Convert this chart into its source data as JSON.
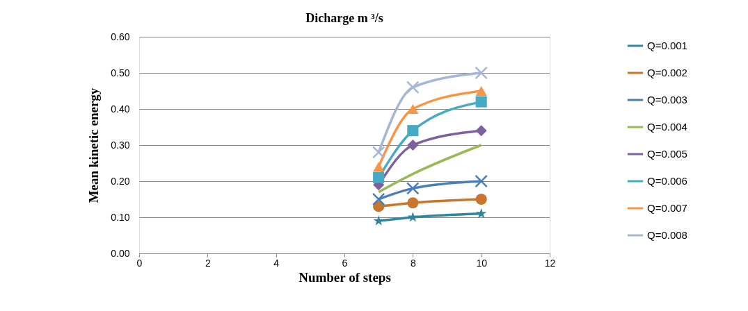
{
  "chart_data": {
    "type": "line",
    "title": "Dicharge m ³/s",
    "xlabel": "Number of steps",
    "ylabel": "Mean kinetic energy",
    "x": [
      7,
      8,
      10
    ],
    "series": [
      {
        "name": "Q=0.001",
        "color": "#31859c",
        "marker": "star",
        "values": [
          0.09,
          0.1,
          0.11
        ]
      },
      {
        "name": "Q=0.002",
        "color": "#c8752e",
        "marker": "circle",
        "values": [
          0.13,
          0.14,
          0.15
        ]
      },
      {
        "name": "Q=0.003",
        "color": "#4a7ebb",
        "marker": "cross",
        "values": [
          0.15,
          0.18,
          0.2
        ]
      },
      {
        "name": "Q=0.004",
        "color": "#98b954",
        "marker": "none",
        "values": [
          0.17,
          0.22,
          0.3
        ]
      },
      {
        "name": "Q=0.005",
        "color": "#7d60a0",
        "marker": "diamond",
        "values": [
          0.19,
          0.3,
          0.34
        ]
      },
      {
        "name": "Q=0.006",
        "color": "#46aac5",
        "marker": "square",
        "values": [
          0.21,
          0.34,
          0.42
        ]
      },
      {
        "name": "Q=0.007",
        "color": "#f79646",
        "marker": "triangle",
        "values": [
          0.24,
          0.4,
          0.45
        ]
      },
      {
        "name": "Q=0.008",
        "color": "#a5b6d6",
        "marker": "cross",
        "values": [
          0.28,
          0.46,
          0.5
        ]
      }
    ],
    "xlim": [
      0,
      12
    ],
    "xticks": [
      0,
      2,
      4,
      6,
      8,
      10,
      12
    ],
    "ylim": [
      0,
      0.6
    ],
    "yticks": [
      {
        "value": 0,
        "label": "0.00"
      },
      {
        "value": 0.1,
        "label": "0.10"
      },
      {
        "value": 0.2,
        "label": "0.20"
      },
      {
        "value": 0.3,
        "label": "0.30"
      },
      {
        "value": 0.4,
        "label": "0.40"
      },
      {
        "value": 0.5,
        "label": "0.50"
      },
      {
        "value": 0.6,
        "label": "0.60"
      }
    ],
    "grid": "y",
    "legend": "right",
    "line_style": "solid"
  }
}
